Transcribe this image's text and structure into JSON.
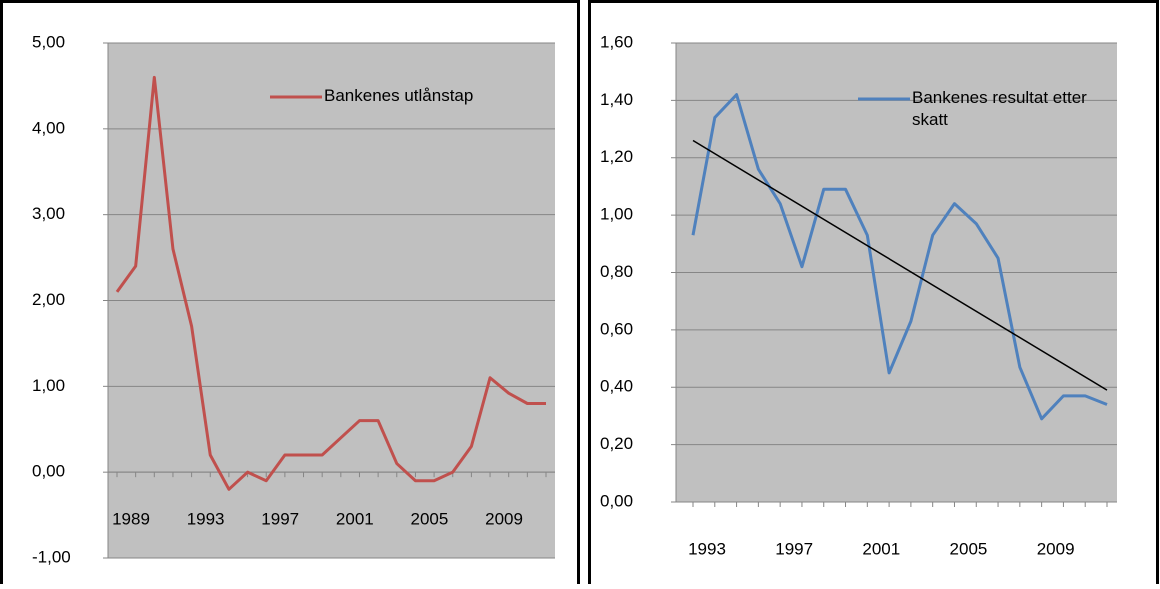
{
  "chart_data": [
    {
      "type": "line",
      "categories": [
        "1989",
        null,
        null,
        null,
        "1993",
        null,
        null,
        null,
        "1997",
        null,
        null,
        null,
        "2001",
        null,
        null,
        null,
        "2005",
        null,
        null,
        null,
        "2009",
        null,
        null,
        null
      ],
      "series": [
        {
          "name": "Bankenes utlånstap",
          "color": "#c0504d",
          "values": [
            2.1,
            2.4,
            4.6,
            2.6,
            1.7,
            0.2,
            -0.2,
            0,
            -0.1,
            0.2,
            0.2,
            0.2,
            0.4,
            0.6,
            0.6,
            0.1,
            -0.1,
            -0.1,
            0,
            0.3,
            1.1,
            0.92,
            0.8,
            0.8
          ]
        }
      ],
      "ylim": [
        -1,
        5
      ],
      "yticks": [
        {
          "value": -1,
          "label": "-1,00"
        },
        {
          "value": 0,
          "label": "0,00"
        },
        {
          "value": 1,
          "label": "1,00"
        },
        {
          "value": 2,
          "label": "2,00"
        },
        {
          "value": 3,
          "label": "3,00"
        },
        {
          "value": 4,
          "label": "4,00"
        },
        {
          "value": 5,
          "label": "5,00"
        }
      ],
      "grid": true,
      "legend": "top-right"
    },
    {
      "type": "line",
      "categories": [
        "1993",
        null,
        null,
        null,
        "1997",
        null,
        null,
        null,
        "2001",
        null,
        null,
        null,
        "2005",
        null,
        null,
        null,
        "2009",
        null,
        null,
        null
      ],
      "series": [
        {
          "name": "Bankenes resultat etter skatt",
          "color": "#4f81bd",
          "values": [
            0.93,
            1.34,
            1.42,
            1.16,
            1.04,
            0.82,
            1.09,
            1.09,
            0.93,
            0.45,
            0.63,
            0.93,
            1.04,
            0.97,
            0.85,
            0.47,
            0.29,
            0.37,
            0.37,
            0.34
          ]
        }
      ],
      "trendline": {
        "values": [
          1.26,
          0.39
        ],
        "color": "#000000"
      },
      "ylim": [
        0,
        1.6
      ],
      "yticks": [
        {
          "value": 0,
          "label": "0,00"
        },
        {
          "value": 0.2,
          "label": "0,20"
        },
        {
          "value": 0.4,
          "label": "0,40"
        },
        {
          "value": 0.6,
          "label": "0,60"
        },
        {
          "value": 0.8,
          "label": "0,80"
        },
        {
          "value": 1,
          "label": "1,00"
        },
        {
          "value": 1.2,
          "label": "1,20"
        },
        {
          "value": 1.4,
          "label": "1,40"
        },
        {
          "value": 1.6,
          "label": "1,60"
        }
      ],
      "grid": true,
      "legend": "top-right"
    }
  ]
}
